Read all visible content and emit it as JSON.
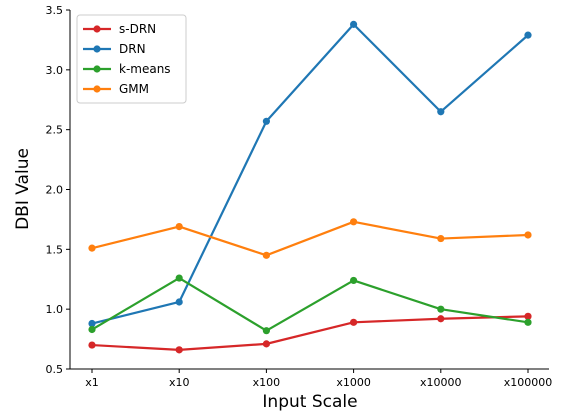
{
  "chart_data": {
    "type": "line",
    "categories": [
      "x1",
      "x10",
      "x100",
      "x1000",
      "x10000",
      "x100000"
    ],
    "xlabel": "Input Scale",
    "ylabel": "DBI Value",
    "ylim": [
      0.5,
      3.5
    ],
    "yticks": [
      "0.5",
      "1.0",
      "1.5",
      "2.0",
      "2.5",
      "3.0",
      "3.5"
    ],
    "grid": false,
    "legend_position": "top-left",
    "series": [
      {
        "name": "s-DRN",
        "color": "#d62728",
        "values": [
          0.7,
          0.66,
          0.71,
          0.89,
          0.92,
          0.94
        ]
      },
      {
        "name": "DRN",
        "color": "#1f77b4",
        "values": [
          0.88,
          1.06,
          2.57,
          3.38,
          2.65,
          3.29
        ]
      },
      {
        "name": "k-means",
        "color": "#2ca02c",
        "values": [
          0.83,
          1.26,
          0.82,
          1.24,
          1.0,
          0.89
        ]
      },
      {
        "name": "GMM",
        "color": "#ff7f0e",
        "values": [
          1.51,
          1.69,
          1.45,
          1.73,
          1.59,
          1.62
        ]
      }
    ]
  }
}
